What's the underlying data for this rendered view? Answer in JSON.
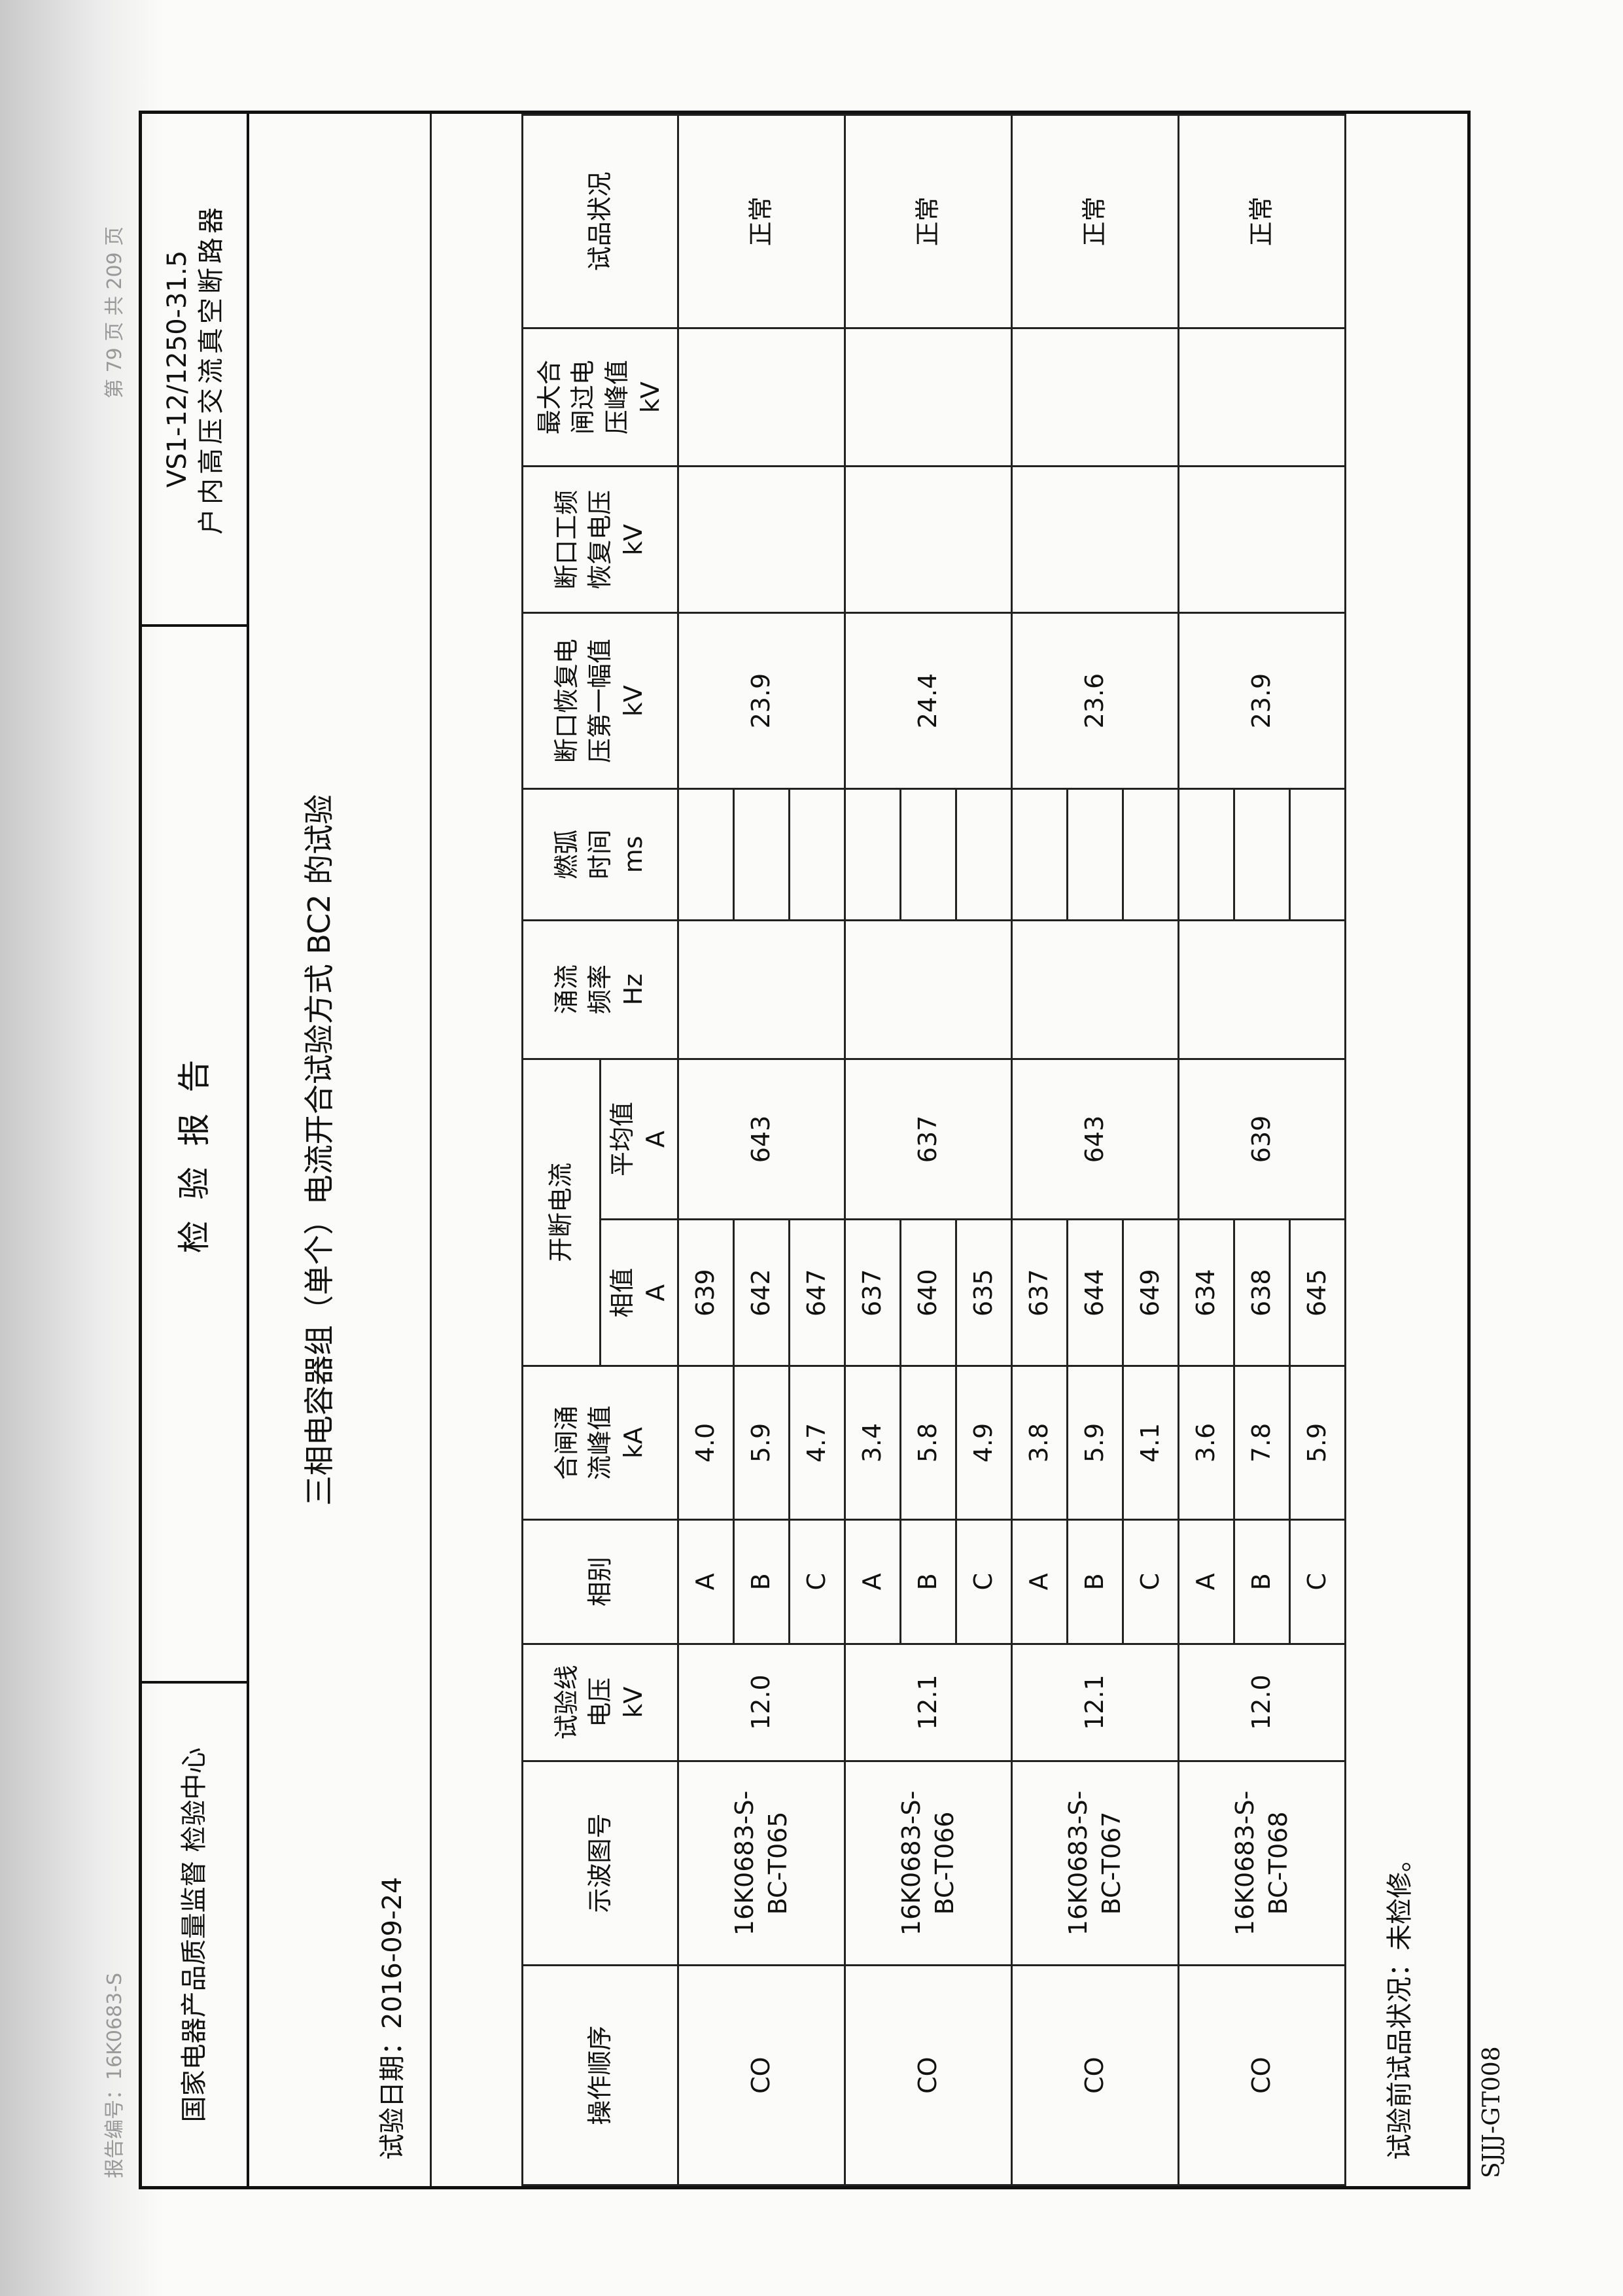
{
  "header": {
    "report_no": "报告编号：16K0683-S",
    "page": "第 79 页 共 209 页",
    "org": "国家电器产品质量监督\n检验中心",
    "title": "检 验 报 告",
    "model": "VS1-12/1250-31.5",
    "product": "户内高压交流真空断路器"
  },
  "section_title": "三相电容器组（单个）电流开合试验方式 BC2 的试验",
  "test_date": "试验日期：2016-09-24",
  "table": {
    "columns": [
      "操作顺序",
      "示波图号",
      "试验线\n电压\nkV",
      "相别",
      "合闸涌\n流峰值\nkA",
      "开断电流",
      "涌流\n频率\nHz",
      "燃弧\n时间\nms",
      "断口恢复电\n压第一幅值\nkV",
      "断口工频\n恢复电压\nkV",
      "最大合\n闸过电\n压峰值\nkV",
      "试品状况"
    ],
    "subcolumns": [
      "相值\nA",
      "平均值\nA"
    ],
    "groups": [
      {
        "sequence": "CO",
        "oscillogram": "16K0683-S-\nBC-T065",
        "voltage": "12.0",
        "phases": [
          {
            "phase": "A",
            "inrush": "4.0",
            "current": "639"
          },
          {
            "phase": "B",
            "inrush": "5.9",
            "current": "642"
          },
          {
            "phase": "C",
            "inrush": "4.7",
            "current": "647"
          }
        ],
        "average": "643",
        "recovery": "23.9",
        "status": "正常"
      },
      {
        "sequence": "CO",
        "oscillogram": "16K0683-S-\nBC-T066",
        "voltage": "12.1",
        "phases": [
          {
            "phase": "A",
            "inrush": "3.4",
            "current": "637"
          },
          {
            "phase": "B",
            "inrush": "5.8",
            "current": "640"
          },
          {
            "phase": "C",
            "inrush": "4.9",
            "current": "635"
          }
        ],
        "average": "637",
        "recovery": "24.4",
        "status": "正常"
      },
      {
        "sequence": "CO",
        "oscillogram": "16K0683-S-\nBC-T067",
        "voltage": "12.1",
        "phases": [
          {
            "phase": "A",
            "inrush": "3.8",
            "current": "637"
          },
          {
            "phase": "B",
            "inrush": "5.9",
            "current": "644"
          },
          {
            "phase": "C",
            "inrush": "4.1",
            "current": "649"
          }
        ],
        "average": "643",
        "recovery": "23.6",
        "status": "正常"
      },
      {
        "sequence": "CO",
        "oscillogram": "16K0683-S-\nBC-T068",
        "voltage": "12.0",
        "phases": [
          {
            "phase": "A",
            "inrush": "3.6",
            "current": "634"
          },
          {
            "phase": "B",
            "inrush": "7.8",
            "current": "638"
          },
          {
            "phase": "C",
            "inrush": "5.9",
            "current": "645"
          }
        ],
        "average": "639",
        "recovery": "23.9",
        "status": "正常"
      }
    ]
  },
  "footer": {
    "condition": "试验前试品状况：未检修。",
    "form": "SJJJ-GT008"
  }
}
